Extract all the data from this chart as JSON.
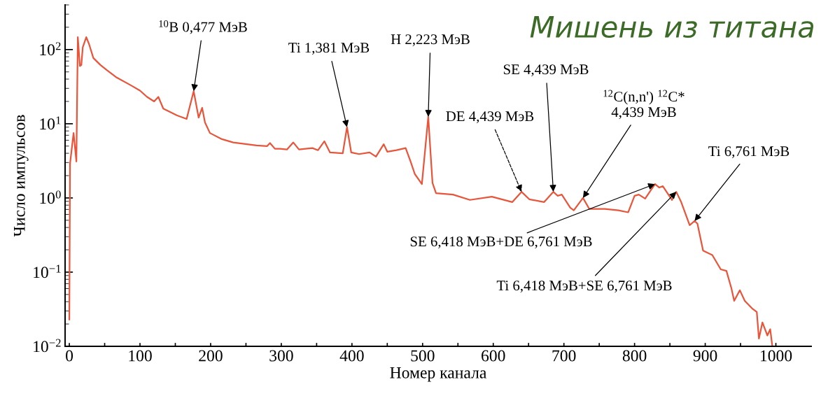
{
  "chart_data": {
    "type": "line",
    "title": "Мишень из титана",
    "xlabel": "Номер канала",
    "ylabel": "Число импульсов",
    "log": "y",
    "xlim": [
      -6,
      1050
    ],
    "ylim": [
      0.01,
      400
    ],
    "xticks": [
      0,
      {
        "value": 50,
        "label": null
      },
      100,
      {
        "value": 150,
        "label": null
      },
      200,
      {
        "value": 250,
        "label": null
      },
      300,
      {
        "value": 350,
        "label": null
      },
      400,
      {
        "value": 450,
        "label": null
      },
      500,
      {
        "value": 550,
        "label": null
      },
      600,
      {
        "value": 650,
        "label": null
      },
      700,
      {
        "value": 750,
        "label": null
      },
      800,
      {
        "value": 850,
        "label": null
      },
      900,
      {
        "value": 950,
        "label": null
      },
      1000
    ],
    "yticks": [
      {
        "value": 0.01,
        "label": "10$^{−2}$"
      },
      {
        "value": 0.1,
        "label": "10$^{−1}$"
      },
      {
        "value": 1,
        "label": "10$^{0}$"
      },
      {
        "value": 10,
        "label": "10$^{1}$"
      },
      {
        "value": 100,
        "label": "10$^{2}$"
      }
    ],
    "grid": false,
    "legend": false,
    "marker": "none",
    "line_style": "solid",
    "series": [
      {
        "color": "#e8553a",
        "x": [
          0,
          1,
          6,
          10,
          12,
          15,
          17,
          19,
          24,
          28,
          34,
          44,
          53,
          67,
          87,
          100,
          110,
          120,
          126,
          133,
          152,
          166,
          176,
          183,
          188,
          192,
          199,
          216,
          232,
          265,
          280,
          284,
          291,
          298,
          308,
          317,
          325,
          344,
          352,
          361,
          369,
          387,
          393,
          399,
          410,
          425,
          434,
          445,
          450,
          463,
          476,
          483,
          489,
          499,
          508,
          514,
          519,
          543,
          567,
          598,
          627,
          640,
          651,
          672,
          685,
          691,
          697,
          709,
          714,
          727,
          736,
          758,
          777,
          791,
          800,
          806,
          815,
          823,
          829,
          835,
          840,
          853,
          859,
          866,
          878,
          885,
          889,
          897,
          910,
          922,
          930,
          937,
          941,
          949,
          956,
          967,
          973,
          976,
          981,
          988,
          992,
          995
        ],
        "values": [
          0.023,
          2.9,
          7.5,
          3.1,
          147,
          60,
          62,
          107,
          147,
          118,
          77,
          62,
          53,
          42,
          33,
          28,
          23,
          20,
          23,
          16,
          13,
          11.6,
          27.5,
          12.1,
          16.4,
          10.4,
          7.5,
          6.2,
          5.6,
          5.1,
          5.0,
          5.5,
          4.6,
          4.6,
          4.5,
          5.6,
          4.5,
          4.7,
          4.4,
          5.8,
          4.1,
          4.0,
          9.0,
          4.1,
          3.9,
          4.1,
          3.6,
          5.3,
          4.2,
          4.4,
          4.7,
          3.1,
          2.1,
          1.54,
          12.4,
          1.6,
          1.16,
          1.11,
          0.94,
          1.04,
          0.88,
          1.21,
          0.96,
          0.88,
          1.21,
          1.07,
          1.11,
          0.74,
          0.68,
          1.0,
          0.71,
          0.71,
          0.68,
          0.64,
          1.07,
          1.11,
          0.98,
          1.27,
          1.54,
          1.38,
          1.44,
          0.94,
          1.21,
          0.88,
          0.43,
          0.49,
          0.45,
          0.195,
          0.17,
          0.109,
          0.104,
          0.061,
          0.041,
          0.057,
          0.041,
          0.032,
          0.029,
          0.0127,
          0.021,
          0.014,
          0.017,
          0.01
        ]
      }
    ],
    "annotations": [
      {
        "text": "$^{10}$B 0,477 МэВ",
        "x": 176,
        "y": 27.5
      },
      {
        "text": "Ti 1,381 МэВ",
        "x": 393,
        "y": 9.0
      },
      {
        "text": "H 2,223 МэВ",
        "x": 508,
        "y": 12.4
      },
      {
        "text": "DE 4,439 МэВ",
        "x": 640,
        "y": 1.21
      },
      {
        "text": "SE 4,439 МэВ",
        "x": 685,
        "y": 1.21
      },
      {
        "text": "$^{12}$C(n,n') $^{12}$C*\n4,439 МэВ",
        "x": 727,
        "y": 1.0
      },
      {
        "text": "Ti 6,761 МэВ",
        "x": 885,
        "y": 0.49
      },
      {
        "text": "SE 6,418 МэВ+DE 6,761 МэВ",
        "x": 829,
        "y": 1.54
      },
      {
        "text": "Ti 6,418 МэВ+SE 6,761 МэВ",
        "x": 859,
        "y": 1.21
      }
    ]
  }
}
